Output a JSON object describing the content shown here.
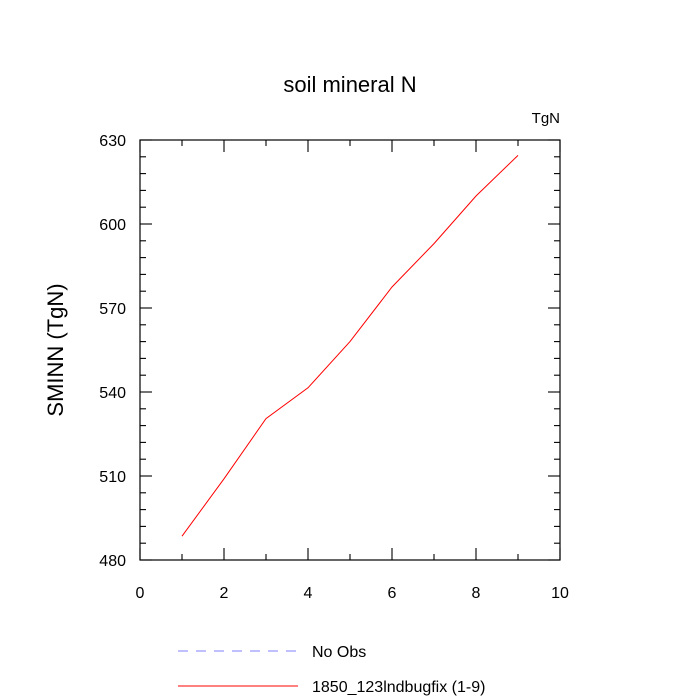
{
  "chart_data": {
    "type": "line",
    "title": "soil mineral N",
    "units_label": "TgN",
    "ylabel": "SMINN  (TgN)",
    "xlabel": "",
    "xlim": [
      0,
      10
    ],
    "ylim": [
      480,
      630
    ],
    "xticks": [
      0,
      2,
      4,
      6,
      8,
      10
    ],
    "yticks": [
      480,
      510,
      540,
      570,
      600,
      630
    ],
    "grid": false,
    "legend_position": "bottom",
    "series": [
      {
        "name": "No Obs",
        "color": "#8080ff",
        "dash": "dashed",
        "x": [],
        "y": []
      },
      {
        "name": "1850_123lndbugfix (1-9)",
        "color": "#ff0000",
        "dash": "solid",
        "x": [
          1,
          2,
          3,
          4,
          5,
          6,
          7,
          8,
          9
        ],
        "y": [
          488.5,
          509,
          530.5,
          541.5,
          558,
          577.5,
          593,
          610,
          624.5
        ]
      }
    ]
  }
}
